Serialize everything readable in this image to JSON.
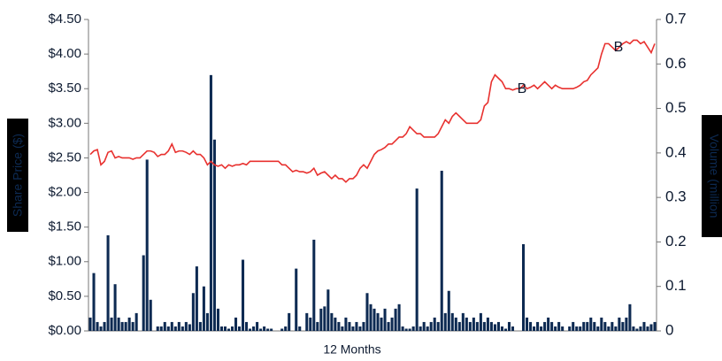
{
  "chart_data": {
    "type": "bar-line",
    "x_label": "12 Months",
    "y_label": "Share Price ($)",
    "y2_label": "Volume (million",
    "annotations": [
      "B",
      "B"
    ],
    "categories": [
      null,
      null,
      null,
      null,
      null,
      null,
      null,
      null,
      null,
      null,
      null,
      null,
      null,
      null,
      null,
      null,
      null,
      null,
      null,
      null,
      null,
      null,
      null,
      null,
      null,
      null,
      null,
      null,
      null,
      null,
      null,
      null,
      null,
      null,
      null,
      null,
      null,
      null,
      null,
      null,
      null,
      null,
      null,
      null,
      null,
      null,
      null,
      null,
      null,
      null,
      null,
      null,
      null,
      null,
      null,
      null,
      null,
      null,
      null,
      null,
      null,
      null,
      null,
      null,
      null,
      null,
      null,
      null,
      null,
      null,
      null,
      null,
      null,
      null,
      null,
      null,
      null,
      null,
      null,
      null,
      null,
      null,
      null,
      null,
      null,
      null,
      null,
      null,
      null,
      null,
      null,
      null,
      null,
      null,
      null,
      null,
      null,
      null,
      null,
      null,
      null,
      null,
      null,
      null,
      null,
      null,
      null,
      null,
      null,
      null,
      null,
      null,
      null,
      null,
      null,
      null,
      null,
      null,
      null,
      null,
      null,
      null,
      null,
      null,
      null,
      null,
      null,
      null,
      null,
      null,
      null,
      null,
      null,
      null,
      null,
      null,
      null,
      null,
      null,
      null,
      null,
      null,
      null,
      null,
      null,
      null,
      null,
      null,
      null,
      null,
      null,
      null,
      null,
      null,
      null,
      null,
      null,
      null,
      null,
      null
    ],
    "series": [
      {
        "name": "Share Price",
        "type": "line",
        "color": "#e8312f",
        "values": [
          2.55,
          2.6,
          2.62,
          2.4,
          2.45,
          2.58,
          2.6,
          2.5,
          2.52,
          2.5,
          2.5,
          2.5,
          2.48,
          2.5,
          2.5,
          2.55,
          2.6,
          2.6,
          2.58,
          2.52,
          2.55,
          2.55,
          2.6,
          2.7,
          2.58,
          2.6,
          2.6,
          2.58,
          2.55,
          2.6,
          2.55,
          2.55,
          2.5,
          2.4,
          2.45,
          2.4,
          2.38,
          2.4,
          2.35,
          2.4,
          2.38,
          2.4,
          2.4,
          2.42,
          2.4,
          2.45,
          2.45,
          2.45,
          2.45,
          2.45,
          2.45,
          2.45,
          2.45,
          2.45,
          2.4,
          2.4,
          2.35,
          2.3,
          2.32,
          2.3,
          2.3,
          2.28,
          2.3,
          2.35,
          2.25,
          2.28,
          2.3,
          2.25,
          2.2,
          2.25,
          2.2,
          2.2,
          2.15,
          2.2,
          2.2,
          2.25,
          2.35,
          2.4,
          2.35,
          2.45,
          2.55,
          2.6,
          2.62,
          2.65,
          2.7,
          2.7,
          2.75,
          2.8,
          2.8,
          2.85,
          2.95,
          2.9,
          2.85,
          2.85,
          2.8,
          2.8,
          2.8,
          2.8,
          2.85,
          2.95,
          3.05,
          3.0,
          3.1,
          3.15,
          3.1,
          3.05,
          3.0,
          3.0,
          3.0,
          3.0,
          3.05,
          3.25,
          3.3,
          3.6,
          3.7,
          3.65,
          3.6,
          3.5,
          3.5,
          3.48,
          3.5,
          3.5,
          3.55,
          3.5,
          3.52,
          3.55,
          3.5,
          3.55,
          3.6,
          3.55,
          3.5,
          3.55,
          3.52,
          3.5,
          3.5,
          3.5,
          3.5,
          3.52,
          3.55,
          3.6,
          3.62,
          3.7,
          3.75,
          3.8,
          4.0,
          4.15,
          4.15,
          4.1,
          4.05,
          4.1,
          4.15,
          4.18,
          4.15,
          4.2,
          4.2,
          4.15,
          4.18,
          4.1,
          4.02,
          4.15
        ]
      },
      {
        "name": "Volume",
        "type": "bar",
        "axis": "y2",
        "color": "#0d2a52",
        "values": [
          0.03,
          0.13,
          0.02,
          0.01,
          0.02,
          0.215,
          0.03,
          0.105,
          0.03,
          0.02,
          0.02,
          0.03,
          0.02,
          0.04,
          0,
          0.17,
          0.385,
          0.07,
          0,
          0.01,
          0.01,
          0.02,
          0.01,
          0.02,
          0.01,
          0.02,
          0.01,
          0.02,
          0.015,
          0.085,
          0.145,
          0.02,
          0.1,
          0.04,
          0.575,
          0.43,
          0.05,
          0.01,
          0.01,
          0.005,
          0.01,
          0.03,
          0.01,
          0.16,
          0.02,
          0.005,
          0.01,
          0.02,
          0.005,
          0.01,
          0.005,
          0.005,
          0,
          0,
          0.005,
          0.01,
          0.04,
          0,
          0.14,
          0.01,
          0,
          0.04,
          0.03,
          0.205,
          0.02,
          0.05,
          0.055,
          0.093,
          0.04,
          0.03,
          0.02,
          0.01,
          0.03,
          0.02,
          0.01,
          0.02,
          0.01,
          0.02,
          0.085,
          0.06,
          0.05,
          0.04,
          0.03,
          0.05,
          0.02,
          0.03,
          0.05,
          0.06,
          0.01,
          0.005,
          0.005,
          0.01,
          0.32,
          0.01,
          0.02,
          0.01,
          0.02,
          0.03,
          0.02,
          0.36,
          0.04,
          0.09,
          0.04,
          0.03,
          0.02,
          0.04,
          0.03,
          0.02,
          0.03,
          0.02,
          0.04,
          0.02,
          0.03,
          0.02,
          0.015,
          0.02,
          0.01,
          0.005,
          0.02,
          0.01,
          0,
          0,
          0.195,
          0.03,
          0.02,
          0.01,
          0.02,
          0.01,
          0.02,
          0.03,
          0.02,
          0.01,
          0.02,
          0.01,
          0,
          0.01,
          0.02,
          0.01,
          0.01,
          0.02,
          0.02,
          0.03,
          0.02,
          0.01,
          0.03,
          0.02,
          0.01,
          0.02,
          0.01,
          0.03,
          0.02,
          0.03,
          0.06,
          0.01,
          0.005,
          0.01,
          0.02,
          0.01,
          0.015,
          0.02
        ]
      }
    ],
    "ylim": [
      0,
      4.5
    ],
    "yticks": [
      {
        "value": 0,
        "label": "$0.00"
      },
      {
        "value": 0.5,
        "label": "$0.50"
      },
      {
        "value": 1,
        "label": "$1.00"
      },
      {
        "value": 1.5,
        "label": "$1.50"
      },
      {
        "value": 2,
        "label": "$2.00"
      },
      {
        "value": 2.5,
        "label": "$2.50"
      },
      {
        "value": 3,
        "label": "$3.00"
      },
      {
        "value": 3.5,
        "label": "$3.50"
      },
      {
        "value": 4,
        "label": "$4.00"
      },
      {
        "value": 4.5,
        "label": "$4.50"
      }
    ],
    "y2lim": [
      0,
      0.7
    ],
    "y2ticks": [
      0,
      0.1,
      0.2,
      0.3,
      0.4,
      0.5,
      0.6,
      0.7
    ]
  }
}
